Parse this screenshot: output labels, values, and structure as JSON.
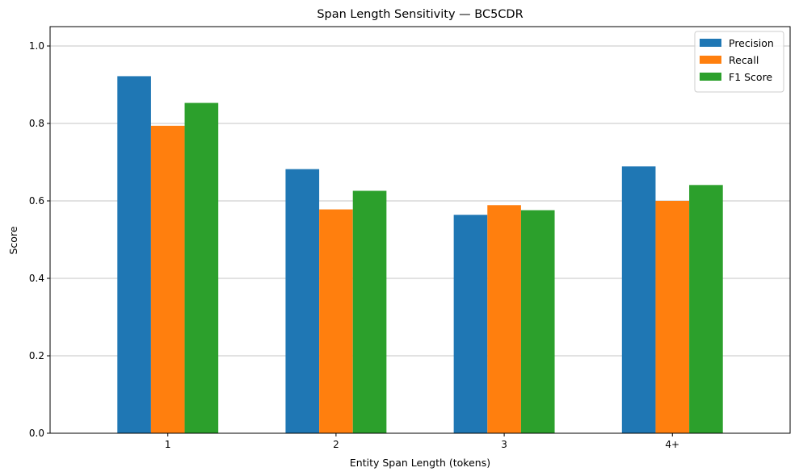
{
  "chart_data": {
    "type": "bar",
    "title": "Span Length Sensitivity — BC5CDR",
    "xlabel": "Entity Span Length (tokens)",
    "ylabel": "Score",
    "categories": [
      "1",
      "2",
      "3",
      "4+"
    ],
    "series": [
      {
        "name": "Precision",
        "color": "#1f77b4",
        "values": [
          0.922,
          0.682,
          0.564,
          0.689
        ]
      },
      {
        "name": "Recall",
        "color": "#ff7f0e",
        "values": [
          0.794,
          0.578,
          0.589,
          0.6
        ]
      },
      {
        "name": "F1 Score",
        "color": "#2ca02c",
        "values": [
          0.853,
          0.626,
          0.576,
          0.641
        ]
      }
    ],
    "ylim": [
      0,
      1.05
    ],
    "yticks": [
      "0.0",
      "0.2",
      "0.4",
      "0.6",
      "0.8",
      "1.0"
    ],
    "grid": "y-major",
    "legend_position": "top-right"
  }
}
